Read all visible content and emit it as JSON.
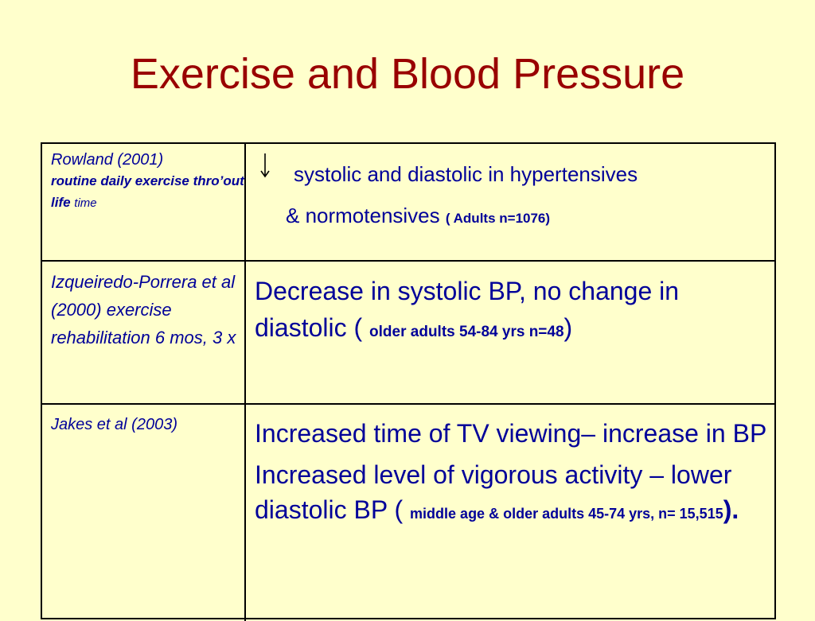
{
  "title": "Exercise and Blood Pressure",
  "rows": [
    {
      "ref_line1": "Rowland (2001)",
      "ref_line2": "routine daily exercise thro’out life",
      "ref_line3": "time",
      "text_line1": "systolic and diastolic in hypertensives",
      "text_line2": "& normotensives",
      "text_small": "( Adults n=1076)",
      "arrow_icon": "down-arrow"
    },
    {
      "ref": "Izqueiredo-Porrera et al (2000)  exercise rehabilitation 6 mos, 3 x",
      "text_main": "Decrease in systolic BP, no change in diastolic (",
      "text_small": "older adults 54-84 yrs n=48",
      "text_close": ")"
    },
    {
      "ref": "Jakes et al (2003)",
      "para1": "Increased time of TV viewing– increase in BP",
      "para2_main": "Increased level of vigorous activity – lower diastolic BP (",
      "para2_small": "middle age & older adults 45-74 yrs, n= 15,515",
      "para2_close": ")."
    }
  ]
}
